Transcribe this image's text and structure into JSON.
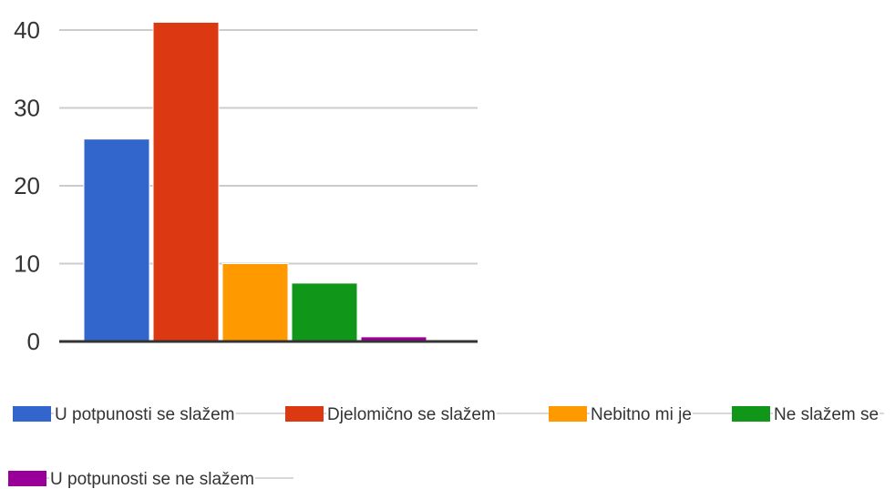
{
  "chart_data": {
    "type": "bar",
    "title": "",
    "xlabel": "",
    "ylabel": "",
    "ylim": [
      0,
      40
    ],
    "yticks": [
      0,
      10,
      20,
      30,
      40
    ],
    "grid": true,
    "legend_placement": "bottom",
    "series": [
      {
        "name": "U potpunosti se slažem",
        "value": 26,
        "color": "#3366cc"
      },
      {
        "name": "Djelomično se slažem",
        "value": 41,
        "color": "#dc3912"
      },
      {
        "name": "Nebitno mi je",
        "value": 10,
        "color": "#ff9900"
      },
      {
        "name": "Ne slažem se",
        "value": 7.5,
        "color": "#109618"
      },
      {
        "name": "U potpunosti se ne slažem",
        "value": 0.6,
        "color": "#990099"
      }
    ]
  }
}
